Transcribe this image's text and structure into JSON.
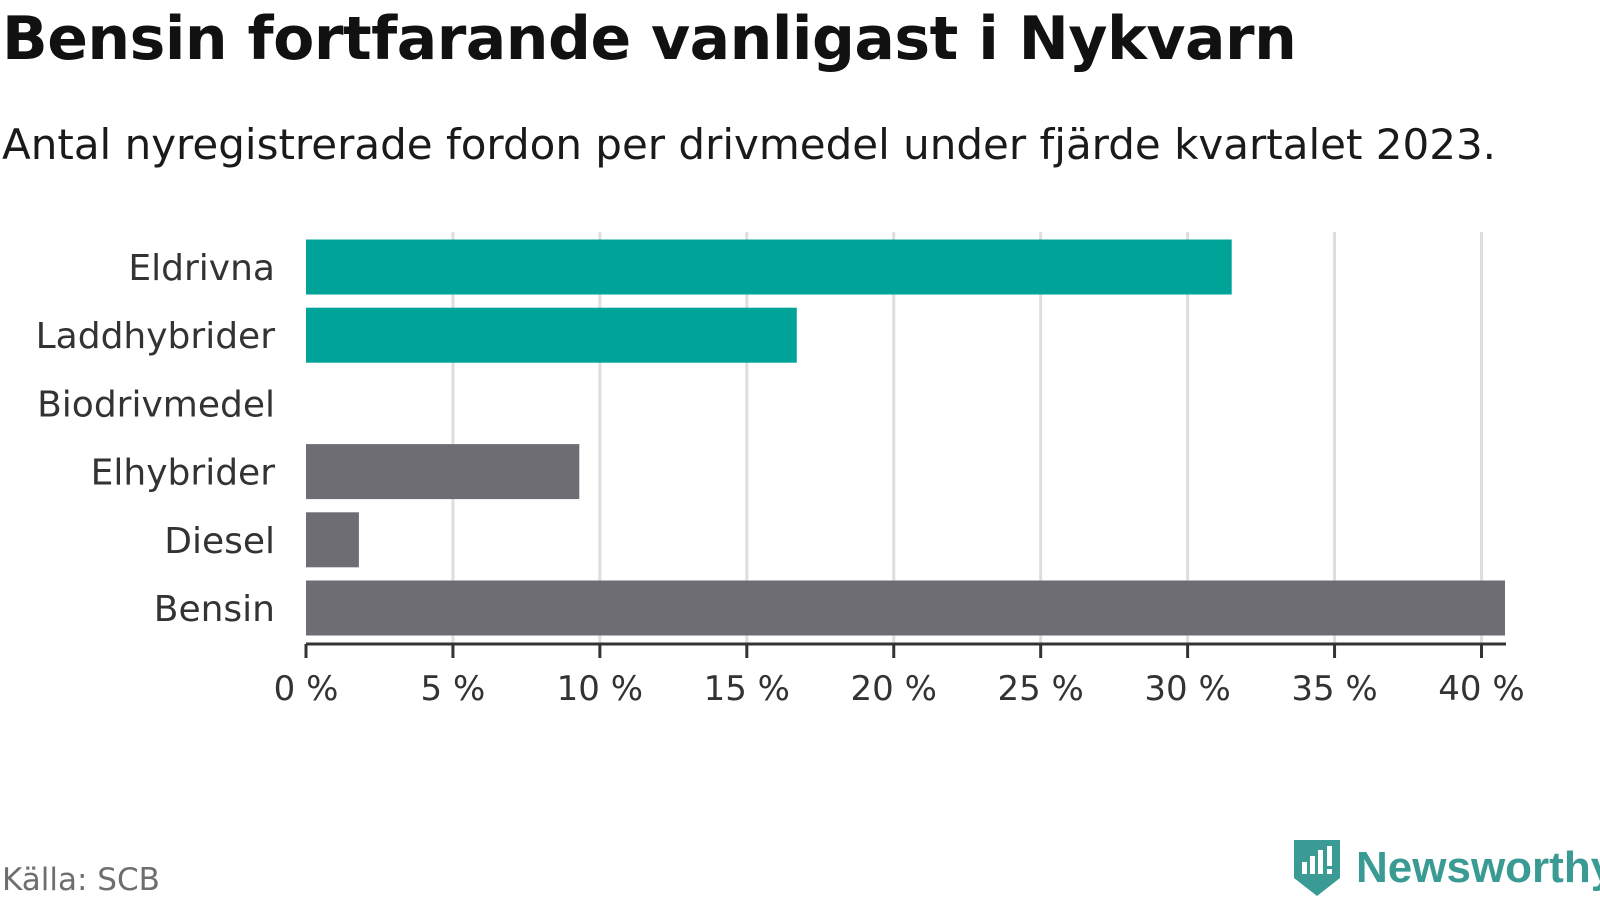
{
  "header": {
    "title": "Bensin fortfarande vanligast i Nykvarn",
    "subtitle": "Antal nyregistrerade fordon per drivmedel under fjärde kvartalet 2023."
  },
  "footer": {
    "source": "Källa: SCB",
    "brand": "Newsworthy",
    "brand_icon": "newsworthy-logo-icon"
  },
  "colors": {
    "highlight": "#00a398",
    "neutral": "#6e6d73",
    "grid": "#dedede",
    "axis": "#333333",
    "brand": "#3a9b94"
  },
  "chart_data": {
    "type": "bar",
    "orientation": "horizontal",
    "title": "Bensin fortfarande vanligast i Nykvarn",
    "subtitle": "Antal nyregistrerade fordon per drivmedel under fjärde kvartalet 2023.",
    "categories": [
      "Eldrivna",
      "Laddhybrider",
      "Biodrivmedel",
      "Elhybrider",
      "Diesel",
      "Bensin"
    ],
    "values": [
      31.5,
      16.7,
      0,
      9.3,
      1.8,
      40.8
    ],
    "bar_colors": [
      "#00a398",
      "#00a398",
      "#00a398",
      "#6e6d73",
      "#6e6d73",
      "#6e6d73"
    ],
    "unit": "%",
    "xlim": [
      0,
      40.8
    ],
    "xticks": [
      0,
      5,
      10,
      15,
      20,
      25,
      30,
      35,
      40
    ],
    "xtick_labels": [
      "0 %",
      "5 %",
      "10 %",
      "15 %",
      "20 %",
      "25 %",
      "30 %",
      "35 %",
      "40 %"
    ],
    "xlabel": "",
    "ylabel": "",
    "grid": "vertical",
    "legend": "none"
  }
}
